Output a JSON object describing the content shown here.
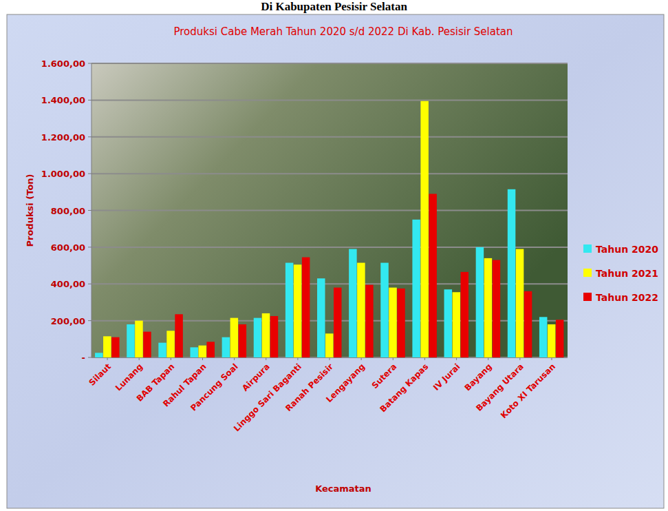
{
  "chart_data": {
    "type": "bar",
    "title": "Produksi Cabe Merah Tahun 2020 s/d 2022 Di Kab. Pesisir Selatan",
    "annotations": [
      "Di Kabupaten Pesisir Selatan"
    ],
    "x_label": "Kecamatan",
    "y_label": "Produksi (Ton)",
    "categories": [
      "Silaut",
      "Lunang",
      "BAB Tapan",
      "Rahul Tapan",
      "Pancung Soal",
      "Airpura",
      "Linggo Sari Baganti",
      "Ranah Pesisir",
      "Lengayang",
      "Sutera",
      "Batang Kapas",
      "IV Jurai",
      "Bayang",
      "Bayang Utara",
      "Koto XI Tarusan"
    ],
    "series": [
      {
        "name": "Tahun 2020",
        "color": "#33e8f0",
        "values": [
          25,
          180,
          80,
          55,
          110,
          215,
          515,
          430,
          590,
          515,
          750,
          370,
          600,
          915,
          220
        ]
      },
      {
        "name": "Tahun 2021",
        "color": "#ffff00",
        "values": [
          115,
          200,
          145,
          65,
          215,
          240,
          505,
          130,
          515,
          380,
          1395,
          355,
          540,
          590,
          180
        ]
      },
      {
        "name": "Tahun 2022",
        "color": "#e80000",
        "values": [
          110,
          140,
          235,
          85,
          180,
          225,
          545,
          380,
          395,
          375,
          890,
          465,
          530,
          360,
          205
        ]
      }
    ],
    "ylim": [
      0,
      1600
    ],
    "yticks": [
      {
        "value": 0,
        "label": "-"
      },
      {
        "value": 200,
        "label": "200,00"
      },
      {
        "value": 400,
        "label": "400,00"
      },
      {
        "value": 600,
        "label": "600,00"
      },
      {
        "value": 800,
        "label": "800,00"
      },
      {
        "value": 1000,
        "label": "1.000,00"
      },
      {
        "value": 1200,
        "label": "1.200,00"
      },
      {
        "value": 1400,
        "label": "1.400,00"
      },
      {
        "value": 1600,
        "label": "1.600,00"
      }
    ],
    "grid": true,
    "legend": "right"
  }
}
